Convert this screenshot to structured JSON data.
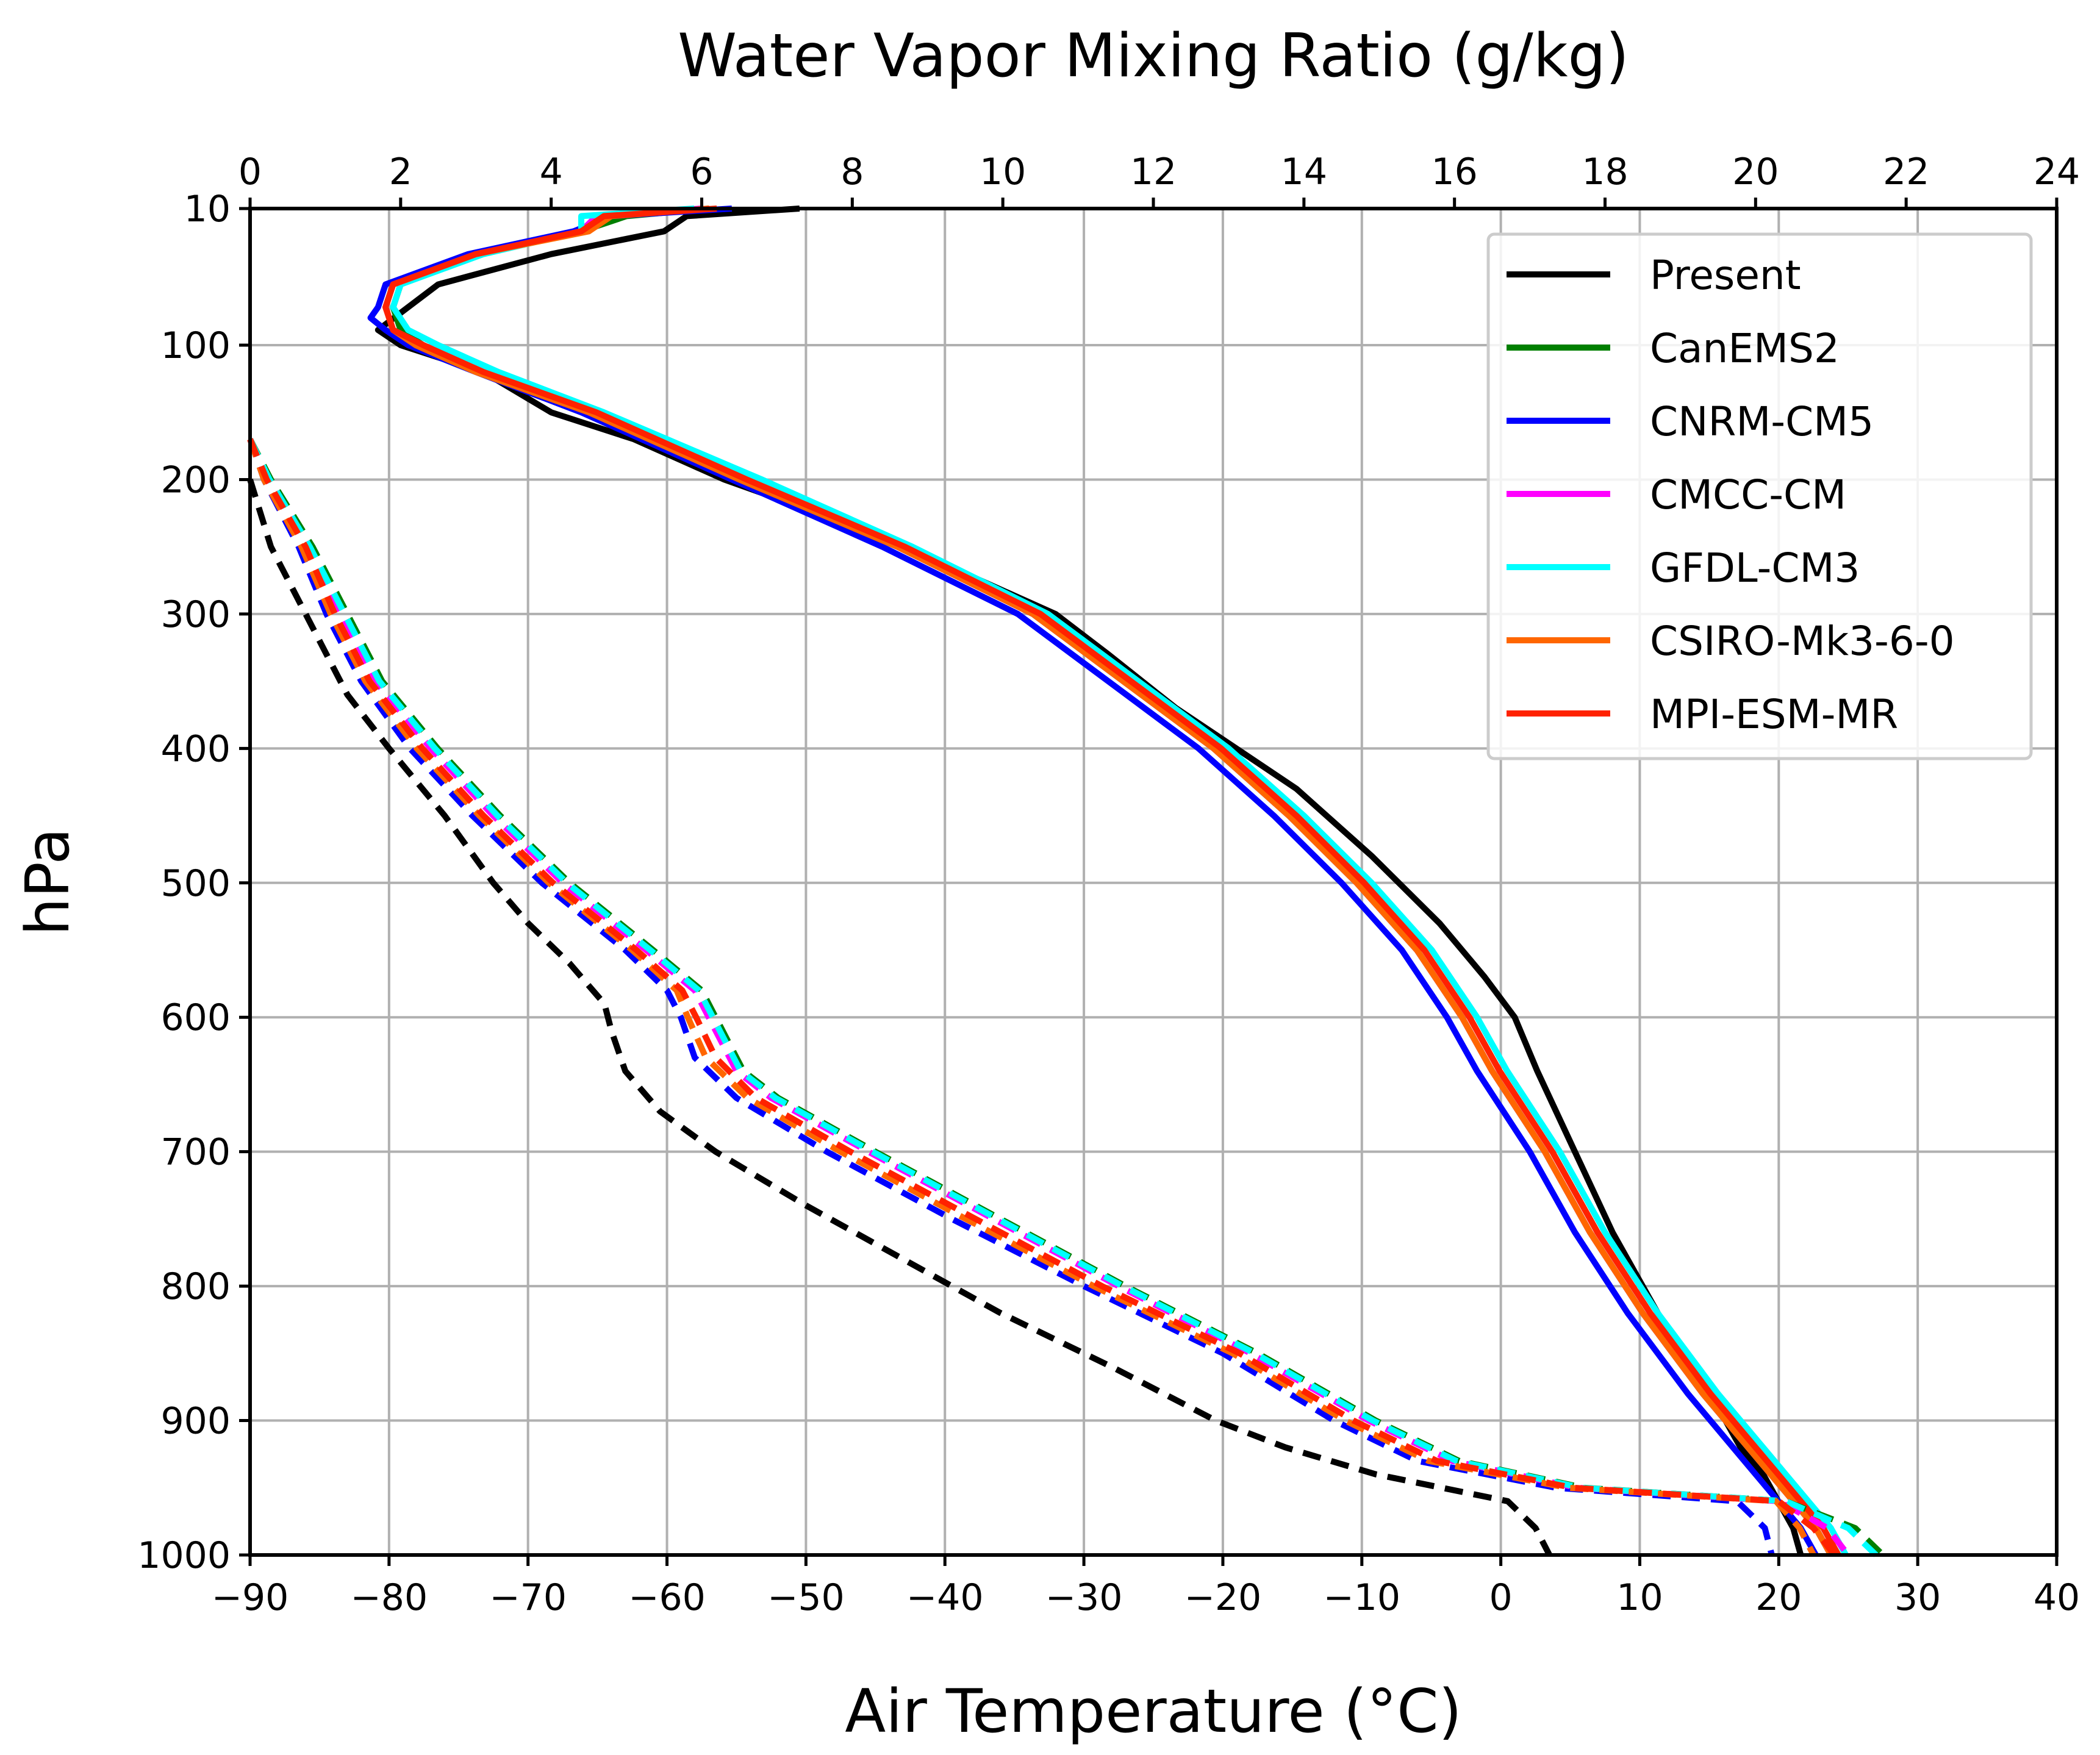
{
  "chart_data": {
    "type": "line",
    "top_axis": {
      "label": "Water Vapor Mixing Ratio (g/kg)",
      "range": [
        0,
        24
      ],
      "ticks": [
        "0",
        "2",
        "4",
        "6",
        "8",
        "10",
        "12",
        "14",
        "16",
        "18",
        "20",
        "22",
        "24"
      ]
    },
    "bottom_axis": {
      "label": "Air Temperature (°C)",
      "range": [
        -90,
        40
      ],
      "ticks": [
        "−90",
        "−80",
        "−70",
        "−60",
        "−50",
        "−40",
        "−30",
        "−20",
        "−10",
        "0",
        "10",
        "20",
        "30",
        "40"
      ]
    },
    "y_axis": {
      "label": "hPa",
      "range": [
        10,
        1000
      ],
      "inverted": true,
      "ticks": [
        "10",
        "100",
        "200",
        "300",
        "400",
        "500",
        "600",
        "700",
        "800",
        "900",
        "1000"
      ]
    },
    "grid": true,
    "legend": {
      "placement": "top-right",
      "entries": [
        {
          "label": "Present",
          "color": "#000000"
        },
        {
          "label": "CanEMS2",
          "color": "#007f00"
        },
        {
          "label": "CNRM-CM5",
          "color": "#0000ff"
        },
        {
          "label": "CMCC-CM",
          "color": "#ff00ff"
        },
        {
          "label": "GFDL-CM3",
          "color": "#00ffff"
        },
        {
          "label": "CSIRO-Mk3-6-0",
          "color": "#ff6600"
        },
        {
          "label": "MPI-ESM-MR",
          "color": "#ff2200"
        }
      ]
    },
    "series": [
      {
        "name": "Present",
        "kind": "mixing_ratio",
        "style": "solid",
        "color": "#000000",
        "p": [
          10,
          15,
          25,
          40,
          60,
          90,
          100,
          120,
          150,
          170,
          200,
          240,
          280,
          300,
          330,
          370,
          400,
          430,
          480,
          530,
          570,
          600,
          640,
          700,
          760,
          820,
          880,
          920,
          940,
          960,
          980,
          1000
        ],
        "v": [
          7.3,
          5.8,
          5.5,
          4.0,
          2.5,
          1.7,
          2.0,
          3.1,
          4.0,
          5.1,
          6.3,
          8.3,
          9.9,
          10.7,
          11.4,
          12.3,
          13.1,
          13.9,
          14.9,
          15.8,
          16.4,
          16.8,
          17.1,
          17.6,
          18.1,
          18.7,
          19.4,
          19.8,
          20.1,
          20.3,
          20.5,
          20.6
        ]
      },
      {
        "name": "CanEMS2",
        "kind": "mixing_ratio",
        "style": "solid",
        "color": "#007f00",
        "p": [
          10,
          15,
          25,
          40,
          60,
          75,
          90,
          100,
          120,
          150,
          200,
          250,
          300,
          350,
          400,
          450,
          500,
          550,
          600,
          640,
          700,
          760,
          820,
          880,
          920,
          940,
          960,
          980,
          1000
        ],
        "v": [
          6.1,
          5.0,
          4.4,
          3.0,
          2.0,
          1.9,
          2.0,
          2.3,
          3.1,
          4.5,
          6.5,
          8.6,
          10.4,
          11.6,
          12.8,
          13.8,
          14.7,
          15.5,
          16.1,
          16.5,
          17.2,
          17.8,
          18.5,
          19.3,
          19.9,
          20.2,
          20.5,
          20.8,
          21.0
        ]
      },
      {
        "name": "CNRM-CM5",
        "kind": "mixing_ratio",
        "style": "solid",
        "color": "#0000ff",
        "p": [
          10,
          15,
          25,
          40,
          60,
          75,
          82,
          90,
          100,
          120,
          150,
          200,
          250,
          300,
          350,
          400,
          450,
          500,
          550,
          600,
          640,
          700,
          760,
          820,
          880,
          920,
          940,
          960,
          980,
          1000
        ],
        "v": [
          6.4,
          4.8,
          4.3,
          2.9,
          1.8,
          1.7,
          1.6,
          1.8,
          2.1,
          3.0,
          4.4,
          6.4,
          8.4,
          10.2,
          11.4,
          12.6,
          13.6,
          14.5,
          15.3,
          15.9,
          16.3,
          17.0,
          17.6,
          18.3,
          19.1,
          19.7,
          20.0,
          20.3,
          20.6,
          20.8
        ]
      },
      {
        "name": "CMCC-CM",
        "kind": "mixing_ratio",
        "style": "solid",
        "color": "#ff00ff",
        "p": [
          10,
          15,
          25,
          40,
          60,
          75,
          90,
          100,
          120,
          150,
          200,
          250,
          300,
          350,
          400,
          450,
          500,
          550,
          600,
          640,
          700,
          760,
          820,
          880,
          920,
          940,
          960,
          980,
          1000
        ],
        "v": [
          6.0,
          4.6,
          4.4,
          3.0,
          1.9,
          1.8,
          1.9,
          2.3,
          3.1,
          4.5,
          6.6,
          8.6,
          10.4,
          11.6,
          12.8,
          13.8,
          14.7,
          15.5,
          16.1,
          16.5,
          17.2,
          17.8,
          18.5,
          19.3,
          19.9,
          20.2,
          20.5,
          20.8,
          21.0
        ]
      },
      {
        "name": "GFDL-CM3",
        "kind": "mixing_ratio",
        "style": "solid",
        "color": "#00ffff",
        "p": [
          10,
          15,
          25,
          40,
          60,
          75,
          90,
          100,
          120,
          150,
          200,
          250,
          300,
          350,
          400,
          450,
          500,
          550,
          600,
          640,
          700,
          760,
          820,
          880,
          920,
          940,
          960,
          980,
          1000
        ],
        "v": [
          5.9,
          4.4,
          4.4,
          3.1,
          2.0,
          1.9,
          2.1,
          2.5,
          3.3,
          4.7,
          6.8,
          8.8,
          10.6,
          11.8,
          13.0,
          14.0,
          14.9,
          15.7,
          16.3,
          16.7,
          17.4,
          18.0,
          18.7,
          19.5,
          20.1,
          20.4,
          20.7,
          21.0,
          21.2
        ]
      },
      {
        "name": "CSIRO-Mk3-6-0",
        "kind": "mixing_ratio",
        "style": "solid",
        "color": "#ff6600",
        "p": [
          10,
          15,
          25,
          40,
          60,
          75,
          90,
          100,
          120,
          150,
          200,
          250,
          300,
          350,
          400,
          450,
          500,
          550,
          600,
          640,
          700,
          760,
          820,
          880,
          920,
          940,
          960,
          980,
          1000
        ],
        "v": [
          6.1,
          4.8,
          4.5,
          3.0,
          1.9,
          1.8,
          1.9,
          2.2,
          3.0,
          4.5,
          6.5,
          8.6,
          10.4,
          11.6,
          12.8,
          13.8,
          14.7,
          15.5,
          16.1,
          16.5,
          17.2,
          17.8,
          18.5,
          19.3,
          19.9,
          20.2,
          20.5,
          20.8,
          21.0
        ]
      },
      {
        "name": "MPI-ESM-MR",
        "kind": "mixing_ratio",
        "style": "solid",
        "color": "#ff2200",
        "p": [
          10,
          15,
          25,
          40,
          60,
          75,
          90,
          100,
          120,
          150,
          200,
          250,
          300,
          350,
          400,
          450,
          500,
          550,
          600,
          640,
          700,
          760,
          820,
          880,
          920,
          940,
          960,
          980,
          1000
        ],
        "v": [
          6.2,
          4.7,
          4.4,
          3.0,
          1.9,
          1.8,
          1.9,
          2.3,
          3.1,
          4.6,
          6.6,
          8.7,
          10.5,
          11.7,
          12.9,
          13.9,
          14.8,
          15.6,
          16.2,
          16.6,
          17.3,
          17.9,
          18.6,
          19.4,
          20.0,
          20.3,
          20.6,
          20.9,
          21.1
        ]
      },
      {
        "name": "Present",
        "kind": "temperature",
        "style": "dashed",
        "color": "#000000",
        "p": [
          200,
          250,
          300,
          360,
          400,
          450,
          500,
          530,
          560,
          590,
          610,
          640,
          670,
          700,
          740,
          780,
          820,
          860,
          900,
          920,
          940,
          960,
          980,
          1000
        ],
        "v": [
          -90.0,
          -88.5,
          -86.0,
          -83.0,
          -80.0,
          -76.0,
          -72.5,
          -70.0,
          -67.0,
          -64.5,
          -64.0,
          -63.0,
          -60.5,
          -56.5,
          -50.0,
          -43.0,
          -36.0,
          -28.0,
          -20.5,
          -15.5,
          -9.0,
          0.5,
          2.5,
          3.5
        ]
      },
      {
        "name": "CanEMS2",
        "kind": "temperature",
        "style": "dashed",
        "color": "#007f00",
        "p": [
          170,
          200,
          250,
          300,
          350,
          400,
          450,
          500,
          550,
          580,
          600,
          640,
          660,
          700,
          750,
          800,
          850,
          900,
          930,
          950,
          960,
          980,
          1000
        ],
        "v": [
          -90.0,
          -88.5,
          -85.5,
          -83.0,
          -80.5,
          -76.5,
          -72.0,
          -67.0,
          -61.0,
          -57.5,
          -56.5,
          -54.5,
          -52.0,
          -45.0,
          -36.0,
          -27.0,
          -17.5,
          -9.0,
          -3.0,
          6.0,
          20.5,
          25.5,
          27.5
        ]
      },
      {
        "name": "CNRM-CM5",
        "kind": "temperature",
        "style": "dashed",
        "color": "#0000ff",
        "p": [
          170,
          200,
          250,
          300,
          350,
          400,
          450,
          500,
          550,
          580,
          600,
          630,
          660,
          700,
          750,
          800,
          850,
          900,
          930,
          950,
          960,
          980,
          1000
        ],
        "v": [
          -90.0,
          -89.0,
          -86.5,
          -84.5,
          -82.0,
          -78.5,
          -74.0,
          -69.0,
          -63.0,
          -60.0,
          -59.0,
          -58.0,
          -55.0,
          -48.5,
          -39.5,
          -30.0,
          -20.0,
          -12.0,
          -6.0,
          4.0,
          17.0,
          19.0,
          19.5
        ]
      },
      {
        "name": "CMCC-CM",
        "kind": "temperature",
        "style": "dashed",
        "color": "#ff00ff",
        "p": [
          170,
          200,
          250,
          300,
          350,
          400,
          450,
          500,
          550,
          580,
          600,
          640,
          660,
          700,
          750,
          800,
          850,
          900,
          930,
          950,
          960,
          980,
          1000
        ],
        "v": [
          -90.0,
          -88.7,
          -85.8,
          -83.5,
          -81.0,
          -77.0,
          -72.5,
          -67.5,
          -61.5,
          -58.0,
          -57.0,
          -55.0,
          -52.5,
          -45.5,
          -36.5,
          -27.5,
          -18.0,
          -9.5,
          -3.5,
          5.5,
          20.0,
          23.5,
          25.0
        ]
      },
      {
        "name": "GFDL-CM3",
        "kind": "temperature",
        "style": "dashed",
        "color": "#00ffff",
        "p": [
          170,
          200,
          250,
          300,
          350,
          400,
          450,
          500,
          550,
          580,
          600,
          640,
          660,
          700,
          750,
          800,
          850,
          900,
          930,
          950,
          960,
          980,
          1000
        ],
        "v": [
          -90.0,
          -88.6,
          -85.7,
          -83.2,
          -80.7,
          -76.7,
          -72.2,
          -67.2,
          -61.2,
          -57.7,
          -56.7,
          -54.7,
          -52.2,
          -45.2,
          -36.2,
          -27.2,
          -17.7,
          -9.2,
          -3.2,
          5.8,
          20.5,
          25.0,
          27.0
        ]
      },
      {
        "name": "CSIRO-Mk3-6-0",
        "kind": "temperature",
        "style": "dashed",
        "color": "#ff6600",
        "p": [
          170,
          200,
          250,
          300,
          350,
          400,
          450,
          500,
          550,
          580,
          600,
          630,
          660,
          700,
          750,
          800,
          850,
          900,
          930,
          950,
          960,
          980,
          1000
        ],
        "v": [
          -90.0,
          -89.0,
          -86.3,
          -84.2,
          -81.7,
          -78.0,
          -73.5,
          -68.5,
          -62.5,
          -59.3,
          -58.5,
          -57.2,
          -54.2,
          -47.5,
          -38.5,
          -29.3,
          -19.3,
          -11.2,
          -5.2,
          4.8,
          19.8,
          21.5,
          22.5
        ]
      },
      {
        "name": "MPI-ESM-MR",
        "kind": "temperature",
        "style": "dashed",
        "color": "#ff2200",
        "p": [
          170,
          200,
          250,
          300,
          350,
          400,
          450,
          500,
          550,
          580,
          600,
          630,
          660,
          700,
          750,
          800,
          850,
          900,
          930,
          950,
          960,
          980,
          1000
        ],
        "v": [
          -90.0,
          -88.8,
          -86.0,
          -83.9,
          -81.4,
          -77.6,
          -73.2,
          -68.2,
          -62.2,
          -58.9,
          -57.9,
          -56.5,
          -53.6,
          -46.8,
          -37.8,
          -28.7,
          -18.8,
          -10.6,
          -4.6,
          5.2,
          20.0,
          22.5,
          24.0
        ]
      }
    ]
  }
}
